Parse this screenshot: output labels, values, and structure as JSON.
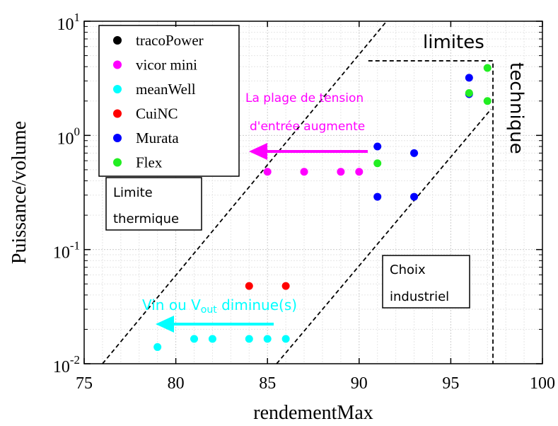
{
  "chart_data": {
    "type": "scatter",
    "xlabel": "rendementMax",
    "ylabel": "Puissance/volume",
    "xlim": [
      75,
      100
    ],
    "ylim": [
      0.01,
      10
    ],
    "y_scale": "log",
    "x_ticks": [
      "75",
      "80",
      "85",
      "90",
      "95",
      "100"
    ],
    "y_ticks": [
      {
        "base": "10",
        "exp": "-2"
      },
      {
        "base": "10",
        "exp": "-1"
      },
      {
        "base": "10",
        "exp": "0"
      },
      {
        "base": "10",
        "exp": "1"
      }
    ],
    "grid": true,
    "legend_position": "top-left",
    "series": [
      {
        "name": "tracoPower",
        "color": "#000000",
        "points": []
      },
      {
        "name": "vicor mini",
        "color": "#ff00ff",
        "points": [
          [
            85,
            0.48
          ],
          [
            87,
            0.48
          ],
          [
            89,
            0.48
          ],
          [
            90,
            0.48
          ]
        ]
      },
      {
        "name": "meanWell",
        "color": "#00ffff",
        "points": [
          [
            79,
            0.014
          ],
          [
            81,
            0.0165
          ],
          [
            82,
            0.0165
          ],
          [
            84,
            0.0165
          ],
          [
            85,
            0.0165
          ],
          [
            86,
            0.0165
          ]
        ]
      },
      {
        "name": "CuiNC",
        "color": "#ff0000",
        "points": [
          [
            84,
            0.048
          ],
          [
            86,
            0.048
          ]
        ]
      },
      {
        "name": "Murata",
        "color": "#0000ff",
        "points": [
          [
            91,
            0.8
          ],
          [
            93,
            0.7
          ],
          [
            91,
            0.29
          ],
          [
            93,
            0.29
          ],
          [
            96,
            3.2
          ],
          [
            96,
            2.3
          ]
        ]
      },
      {
        "name": "Flex",
        "color": "#22ee22",
        "points": [
          [
            91,
            0.57
          ],
          [
            96,
            2.35
          ],
          [
            97,
            3.9
          ],
          [
            97,
            2.0
          ]
        ]
      }
    ],
    "lines": [
      {
        "name": "thermal-limit-line",
        "style": "dashed",
        "points": [
          [
            76,
            0.01
          ],
          [
            91.5,
            10
          ]
        ]
      },
      {
        "name": "industrial-limit-line",
        "style": "dashed",
        "points": [
          [
            85.5,
            0.01
          ],
          [
            97.2,
            1.7
          ]
        ]
      },
      {
        "name": "technical-limit-box",
        "style": "dashed",
        "points": [
          [
            90.5,
            4.5
          ],
          [
            97.3,
            4.5
          ],
          [
            97.3,
            0.01
          ]
        ]
      }
    ],
    "annotations": {
      "limites": "limites",
      "technique": "technique",
      "thermal_line1": "Limite",
      "thermal_line2": "thermique",
      "industrial_line1": "Choix",
      "industrial_line2": "industriel",
      "voltage_line1": "La plage de tension",
      "voltage_line2": "d'entrée augmente",
      "vin_prefix": "Vin ou V",
      "vin_sub": "out",
      "vin_suffix": " diminue(s)"
    },
    "annotation_colors": {
      "voltage_arrow": "#ff00ff",
      "vin_arrow": "#00ffff"
    }
  }
}
